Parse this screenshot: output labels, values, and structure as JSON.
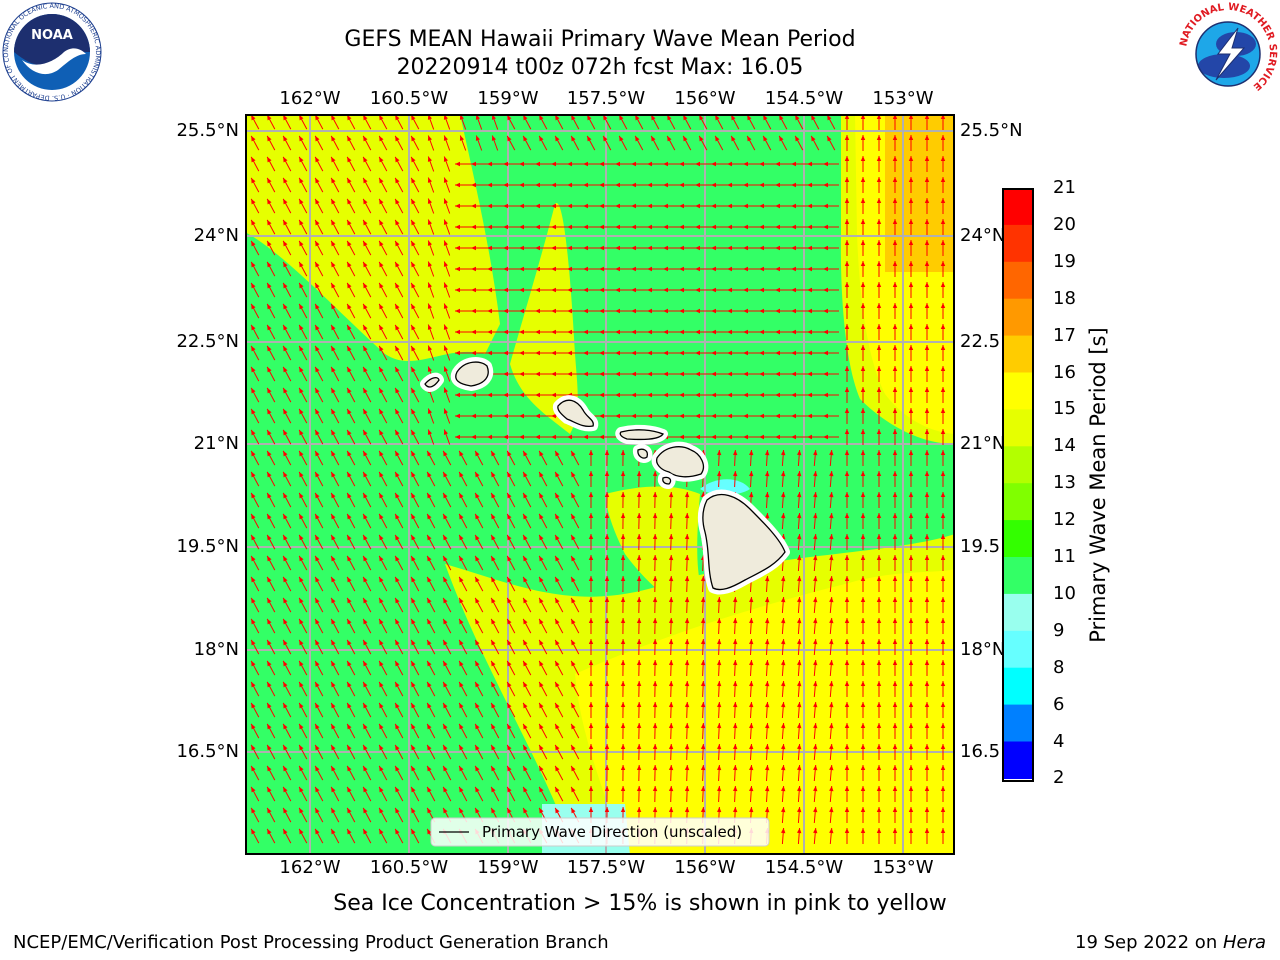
{
  "title": {
    "line1": "GEFS MEAN Hawaii Primary Wave Mean Period",
    "line2": "20220914 t00z 072h fcst   Max: 16.05"
  },
  "logos": {
    "left": "noaa-logo",
    "left_text": "NOAA",
    "left_ring_text": "NATIONAL OCEANIC AND ATMOSPHERIC ADMINISTRATION · U.S. DEPARTMENT OF COMMERCE",
    "right": "nws-logo",
    "right_ring_text": "NATIONAL WEATHER SERVICE"
  },
  "map": {
    "lon_ticks": [
      "162°W",
      "160.5°W",
      "159°W",
      "157.5°W",
      "156°W",
      "154.5°W",
      "153°W"
    ],
    "lat_ticks": [
      "25.5°N",
      "24°N",
      "22.5°N",
      "21°N",
      "19.5°N",
      "18°N",
      "16.5°N"
    ],
    "lat_ticks_right": [
      "25.5°N",
      "24°N",
      "22.5",
      "21°N",
      "19.5",
      "18°N",
      "16.5"
    ],
    "legend": "Primary Wave Direction (unscaled)",
    "arrow_color": "#ff0000",
    "land_color": "#efebdc"
  },
  "colorbar": {
    "label": "Primary Wave Mean Period [s]",
    "ticks": [
      "21",
      "20",
      "19",
      "18",
      "17",
      "16",
      "15",
      "14",
      "13",
      "12",
      "11",
      "10",
      "9",
      "8",
      "6",
      "4",
      "2"
    ],
    "colors": [
      "#ff0000",
      "#ff3300",
      "#ff6600",
      "#ff9900",
      "#ffcc00",
      "#ffff00",
      "#e6ff00",
      "#b3ff00",
      "#80ff00",
      "#33ff00",
      "#33ff66",
      "#99ffee",
      "#66ffff",
      "#00ffff",
      "#0080ff",
      "#0000ff"
    ]
  },
  "ice_note": "Sea Ice Concentration > 15% is shown in pink to yellow",
  "footer": {
    "left": "NCEP/EMC/Verification Post Processing Product Generation Branch",
    "right_date": "19 Sep 2022 on ",
    "right_machine": "Hera"
  }
}
